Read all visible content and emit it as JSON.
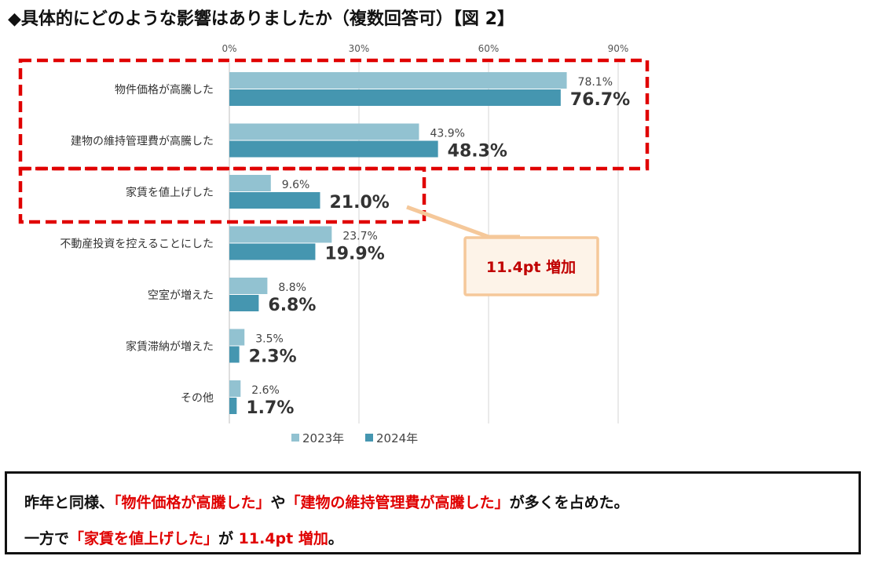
{
  "title": "◆具体的にどのような影響はありましたか（複数回答可）【図 2】",
  "chart_data": {
    "type": "bar",
    "orientation": "horizontal",
    "categories": [
      "物件価格が高騰した",
      "建物の維持管理費が高騰した",
      "家賃を値上げした",
      "不動産投資を控えることにした",
      "空室が増えた",
      "家賃滞納が増えた",
      "その他"
    ],
    "series": [
      {
        "name": "2023年",
        "values": [
          78.1,
          43.9,
          9.6,
          23.7,
          8.8,
          3.5,
          2.6
        ],
        "labels": [
          "78.1%",
          "43.9%",
          "9.6%",
          "23.7%",
          "8.8%",
          "3.5%",
          "2.6%"
        ],
        "color": "#92c2d1"
      },
      {
        "name": "2024年",
        "values": [
          76.7,
          48.3,
          21.0,
          19.9,
          6.8,
          2.3,
          1.7
        ],
        "labels": [
          "76.7%",
          "48.3%",
          "21.0%",
          "19.9%",
          "6.8%",
          "2.3%",
          "1.7%"
        ],
        "color": "#4596b0"
      }
    ],
    "xlim": [
      0,
      90
    ],
    "ticks": [
      0,
      30,
      60,
      90
    ],
    "tick_labels": [
      "0%",
      "30%",
      "60%",
      "90%"
    ],
    "grid": true,
    "legend_position": "bottom",
    "callout": "11.4pt 増加"
  },
  "summary": {
    "line1_a": "昨年と同様、",
    "line1_b": "「物件価格が高騰した」",
    "line1_c": "や",
    "line1_d": "「建物の維持管理費が高騰した」",
    "line1_e": "が多くを占めた。",
    "line2_a": "一方で",
    "line2_b": "「家賃を値上げした」",
    "line2_c": "が ",
    "line2_d": "11.4pt 増加",
    "line2_e": "。"
  },
  "colors": {
    "dash_highlight": "#e00000",
    "callout_border": "#f5c89a",
    "callout_fill": "#fdf3e8",
    "callout_text": "#c00000"
  }
}
